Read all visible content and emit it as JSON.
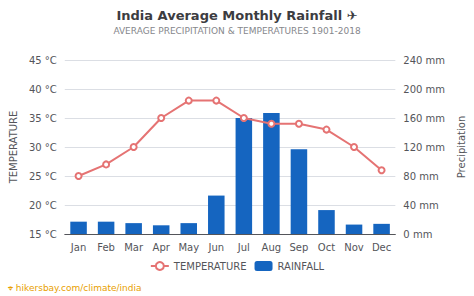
{
  "chart_data": {
    "type": "bar",
    "title": "India Average Monthly Rainfall ✈",
    "subtitle": "AVERAGE PRECIPITATION & TEMPERATURES 1901-2018",
    "categories": [
      "Jan",
      "Feb",
      "Mar",
      "Apr",
      "May",
      "Jun",
      "Jul",
      "Aug",
      "Sep",
      "Oct",
      "Nov",
      "Dec"
    ],
    "series": [
      {
        "name": "TEMPERATURE",
        "type": "line",
        "marker": "circle",
        "color": "#E57373",
        "values": [
          25,
          27,
          30,
          35,
          38,
          38,
          35,
          34,
          34,
          33,
          30,
          26
        ]
      },
      {
        "name": "RAINFALL",
        "type": "bar",
        "axis": "y2",
        "color": "#1565C0",
        "values": [
          17,
          17,
          15,
          12,
          15,
          53,
          160,
          167,
          117,
          33,
          13,
          14
        ]
      }
    ],
    "ylabel": "TEMPERATURE",
    "y2label": "Precipitation",
    "ylim": [
      15,
      45
    ],
    "yticks": [
      {
        "value": 15,
        "label": "15 °C"
      },
      {
        "value": 20,
        "label": "20 °C"
      },
      {
        "value": 25,
        "label": "25 °C"
      },
      {
        "value": 30,
        "label": "30 °C"
      },
      {
        "value": 35,
        "label": "35 °C"
      },
      {
        "value": 40,
        "label": "40 °C"
      },
      {
        "value": 45,
        "label": "45 °C"
      }
    ],
    "y2lim": [
      0,
      240
    ],
    "y2ticks": [
      {
        "value": 0,
        "label": "0 mm"
      },
      {
        "value": 40,
        "label": "40 mm"
      },
      {
        "value": 80,
        "label": "80 mm"
      },
      {
        "value": 120,
        "label": "120 mm"
      },
      {
        "value": 160,
        "label": "160 mm"
      },
      {
        "value": 200,
        "label": "200 mm"
      },
      {
        "value": 240,
        "label": "240 mm"
      }
    ],
    "grid": true,
    "legend": "bottom",
    "annotations": [
      "⌖ hikersbay.com/climate/india"
    ]
  }
}
